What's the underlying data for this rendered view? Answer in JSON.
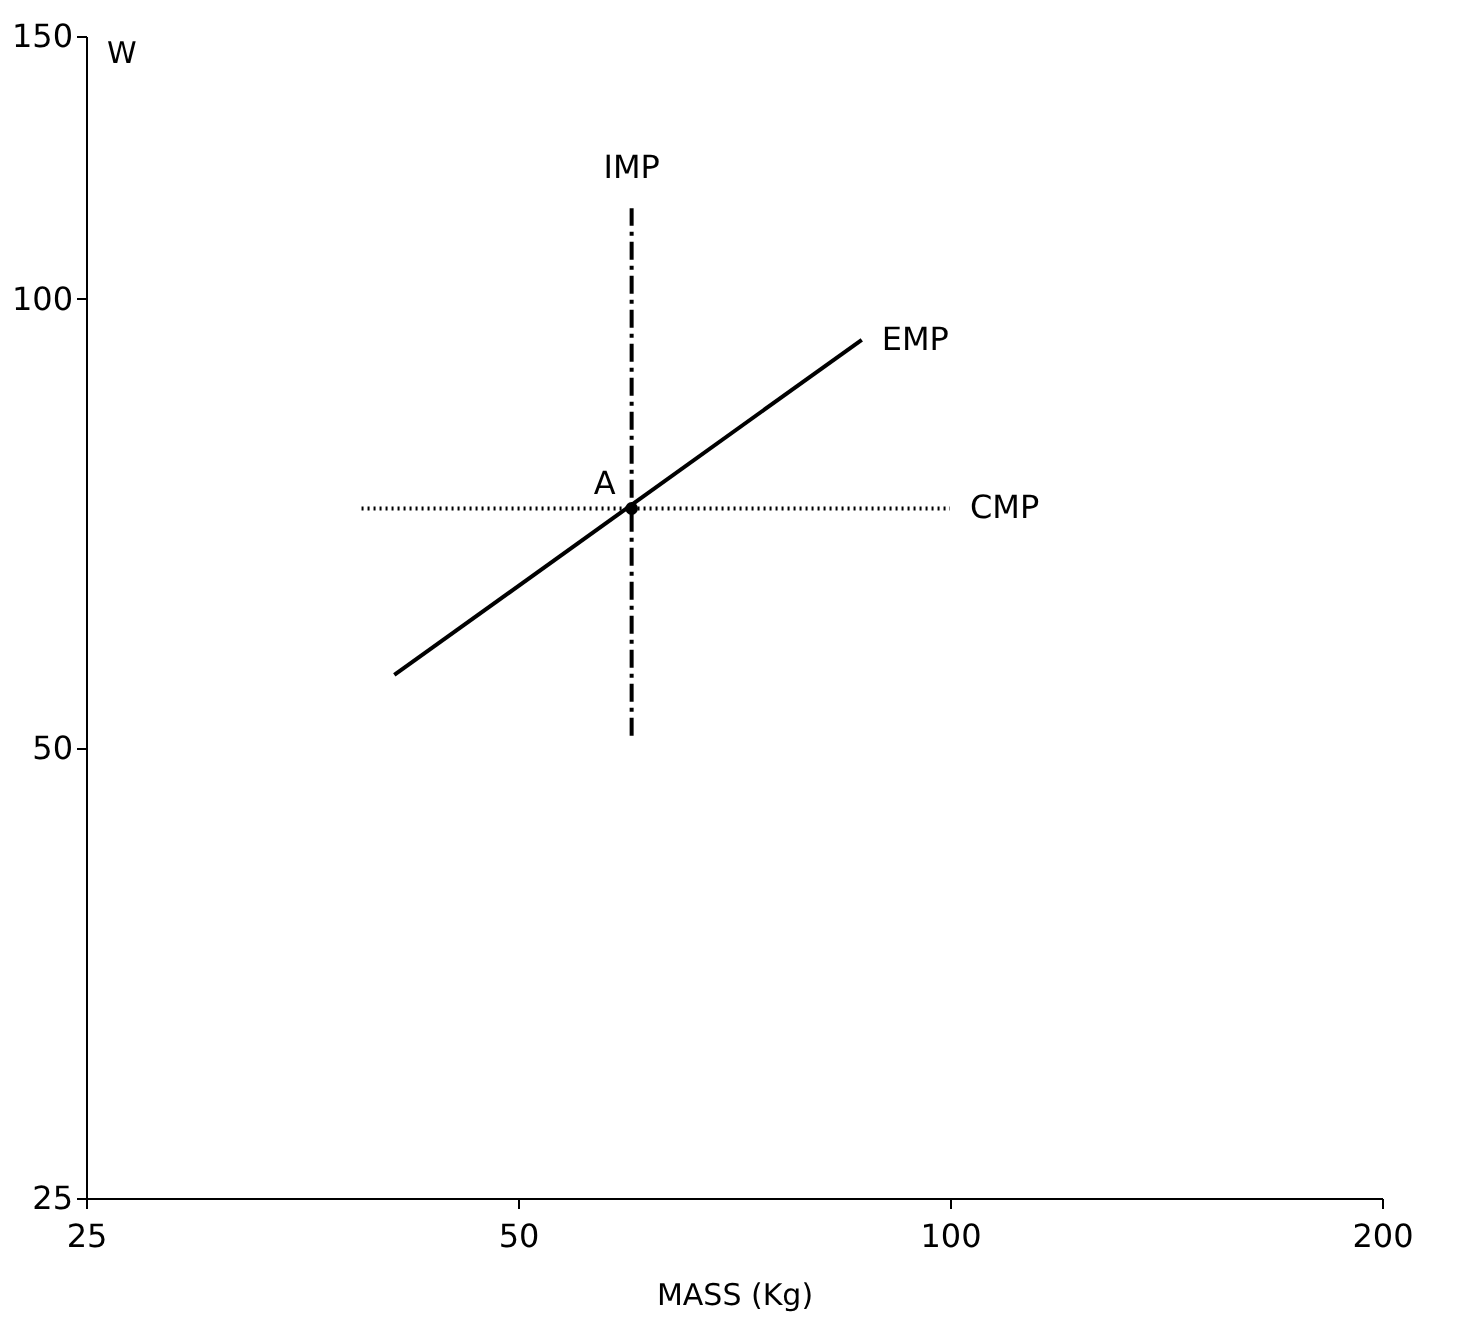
{
  "chart_data": {
    "type": "line",
    "xlabel": "MASS (Kg)",
    "ylabel": "W",
    "log": "xy",
    "grid": false,
    "xlim": [
      25,
      200
    ],
    "xticks": [
      25,
      50,
      100,
      200
    ],
    "ylim": [
      25,
      150
    ],
    "yticks": [
      25,
      50,
      100,
      150
    ],
    "series": [
      {
        "name": "EMP",
        "color": "#000000",
        "line_style": "solid",
        "x": [
          41,
          86.8
        ],
        "values": [
          56,
          93.9
        ]
      },
      {
        "name": "CMP",
        "color": "#000000",
        "line_style": "dotted",
        "x": [
          38.9,
          100
        ],
        "values": [
          72.4,
          72.4
        ]
      },
      {
        "name": "IMP",
        "color": "#000000",
        "line_style": "dashed",
        "x": [
          60,
          60
        ],
        "values": [
          51,
          115
        ]
      },
      {
        "type": "scatter",
        "color": "#000000",
        "marker": "circle",
        "x": [
          60
        ],
        "values": [
          72.4
        ]
      }
    ],
    "annotations": [
      {
        "text": "A",
        "x": 60,
        "y": 72.4
      }
    ]
  }
}
